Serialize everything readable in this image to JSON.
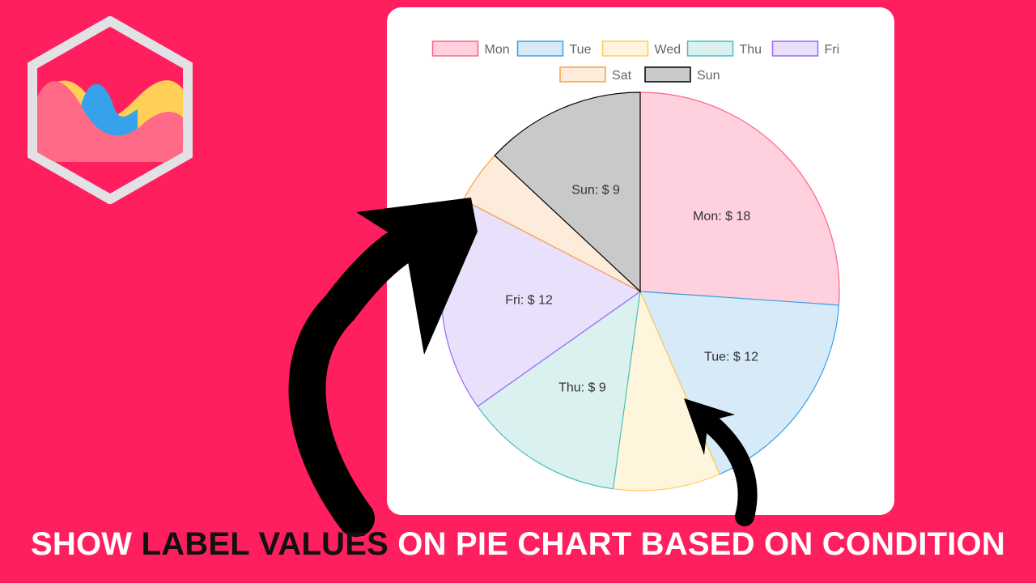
{
  "logo_icon": "chartjs-logo-icon",
  "chart_data": {
    "type": "pie",
    "categories": [
      "Mon",
      "Tue",
      "Wed",
      "Thu",
      "Fri",
      "Sat",
      "Sun"
    ],
    "values": [
      18,
      12,
      6,
      9,
      12,
      3,
      9
    ],
    "data_labels": [
      "Mon: $ 18",
      "Tue: $ 12",
      "",
      "Thu: $ 9",
      "Fri: $ 12",
      "",
      "Sun: $ 9"
    ],
    "colors": {
      "fill": [
        "#ffd0dd",
        "#d6eaf8",
        "#fff5dd",
        "#daf1ef",
        "#e9e0fb",
        "#fdebdc",
        "#c9c9c9"
      ],
      "stroke": [
        "#ff6384",
        "#36a2eb",
        "#ffcd56",
        "#4bc0c0",
        "#9966ff",
        "#ff9f40",
        "#000000"
      ]
    },
    "legend_position": "top"
  },
  "caption": {
    "part1": "SHOW ",
    "highlight": "LABEL VALUES",
    "part2": " ON PIE CHART BASED ON CONDITION"
  },
  "colors": {
    "background": "#ff1f5f",
    "card": "#ffffff",
    "arrow": "#000000",
    "caption": "#ffffff",
    "caption_highlight": "#111111"
  }
}
